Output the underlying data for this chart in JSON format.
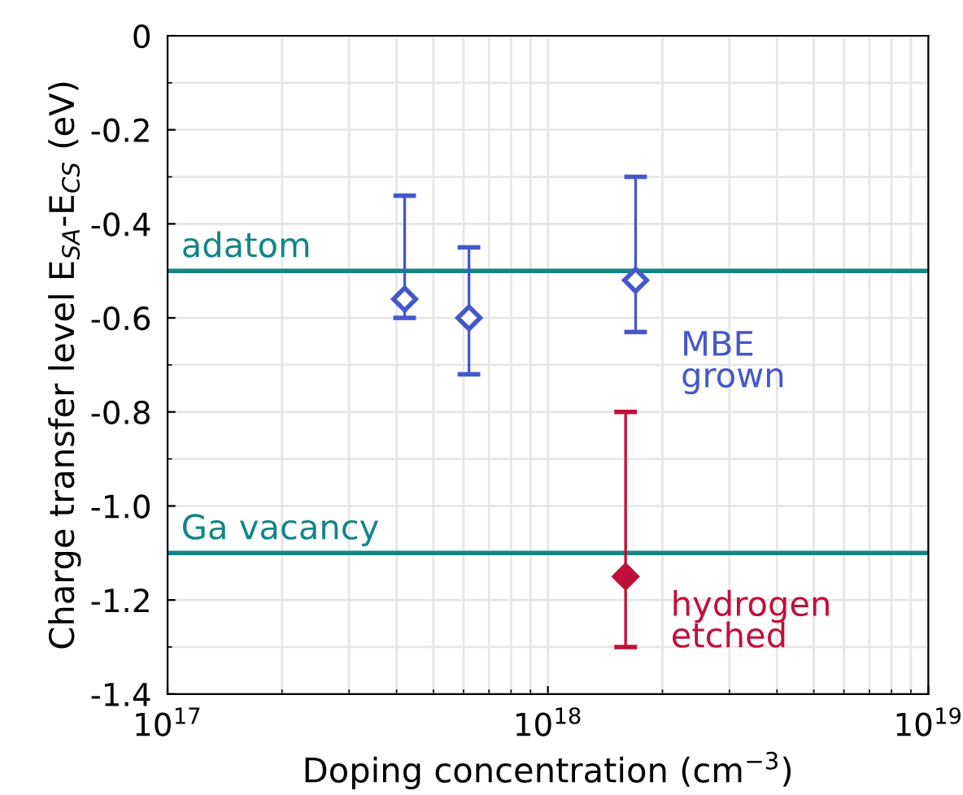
{
  "chart_data": {
    "type": "scatter",
    "xlabel": "Doping concentration (cm$^{−3}$)",
    "ylabel": "Charge transfer level E$_{SA}$-E$_{CS}$ (eV)",
    "log": "x",
    "xlim": [
      1e+17,
      1e+19
    ],
    "xticks": [
      {
        "value": 1e+17,
        "label": "10$^{17}$"
      },
      {
        "value": 1e+18,
        "label": "10$^{18}$"
      },
      {
        "value": 1e+19,
        "label": "10$^{19}$"
      }
    ],
    "ylim": [
      -1.4,
      0
    ],
    "yticks": [
      -1.4,
      -1.2,
      {
        "value": -1.0,
        "label": "-1.0"
      },
      -0.8,
      -0.6,
      -0.4,
      -0.2,
      0
    ],
    "grid": true,
    "legend": false,
    "marker": "diamond",
    "series": [
      {
        "name": "MBE\ngrown",
        "color": "#4457cc",
        "x": [
          4.2e+17,
          6.2e+17,
          1.7e+18
        ],
        "values": [
          -0.56,
          -0.6,
          -0.52
        ],
        "errors": [
          [
            -0.6,
            -0.34
          ],
          [
            -0.72,
            -0.45
          ],
          [
            -0.63,
            -0.3
          ]
        ]
      },
      {
        "name": "hydrogen\netched",
        "color": "#c0103a",
        "x": [
          1.6e+18
        ],
        "values": [
          -1.15
        ],
        "errors": [
          [
            -1.3,
            -0.8
          ]
        ]
      }
    ],
    "ref_lines": [
      {
        "axis": "y",
        "value": -0.5,
        "label": "adatom",
        "color": "#138585"
      },
      {
        "axis": "y",
        "value": -1.1,
        "label": "Ga vacancy",
        "color": "#138585"
      }
    ]
  }
}
